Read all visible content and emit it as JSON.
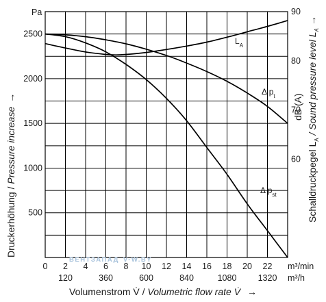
{
  "chart_data": {
    "type": "line",
    "y_unit_left": "Pa",
    "ylim_left": [
      0,
      2500
    ],
    "yticks_left": [
      500,
      1000,
      1500,
      2000,
      2500
    ],
    "ylabel_left_de": "Druckerhöhung / ",
    "ylabel_left_en": "Pressure increase",
    "ylabel_left_arrow": "→",
    "ylim_right": [
      40,
      90
    ],
    "yticks_right": [
      60,
      70,
      80,
      90
    ],
    "ylabel_right_unit": "dB (A)",
    "ylabel_right_de": "Schalldruckpegel L",
    "ylabel_right_sub": "A",
    "ylabel_right_en": " / Sound pressure level L",
    "ylabel_right_arrow": "→",
    "xlim": [
      0,
      24
    ],
    "xticks_m3min": [
      "0",
      "2",
      "4",
      "6",
      "8",
      "10",
      "12",
      "14",
      "16",
      "18",
      "20",
      "22"
    ],
    "xunit_m3min": "m³/min",
    "xticks_m3h": [
      "120",
      "360",
      "600",
      "840",
      "1080",
      "1320"
    ],
    "xunit_m3h": "m³/h",
    "xlabel_de": "Volumenstrom V̇ / ",
    "xlabel_en": "Volumetric flow rate V̇",
    "xlabel_arrow": "→",
    "series": [
      {
        "name": "Δ p",
        "name_sub": "t",
        "axis": "left",
        "x": [
          0,
          2,
          4,
          6,
          8,
          10,
          12,
          14,
          16,
          18,
          20,
          22,
          24
        ],
        "y": [
          2500,
          2490,
          2470,
          2435,
          2390,
          2330,
          2260,
          2175,
          2080,
          1970,
          1840,
          1690,
          1500
        ]
      },
      {
        "name": "Δ p",
        "name_sub": "st",
        "axis": "left",
        "x": [
          0,
          2,
          4,
          6,
          8,
          10,
          12,
          14,
          16,
          18,
          20,
          22,
          24
        ],
        "y": [
          2500,
          2470,
          2400,
          2300,
          2160,
          1990,
          1780,
          1530,
          1230,
          930,
          600,
          300,
          0
        ]
      },
      {
        "name": "L",
        "name_sub": "A",
        "axis": "right",
        "x": [
          0,
          2,
          4,
          6,
          7,
          8,
          10,
          12,
          14,
          16,
          18,
          20,
          22,
          24
        ],
        "y": [
          83.5,
          82.6,
          81.8,
          81.3,
          81.2,
          81.3,
          81.7,
          82.3,
          83.0,
          83.8,
          84.8,
          85.9,
          87.0,
          88.2
        ]
      }
    ],
    "grid": true
  },
  "watermark": {
    "text": "ВЕНТЗАПАД",
    "suffix": "V-W.BY"
  }
}
